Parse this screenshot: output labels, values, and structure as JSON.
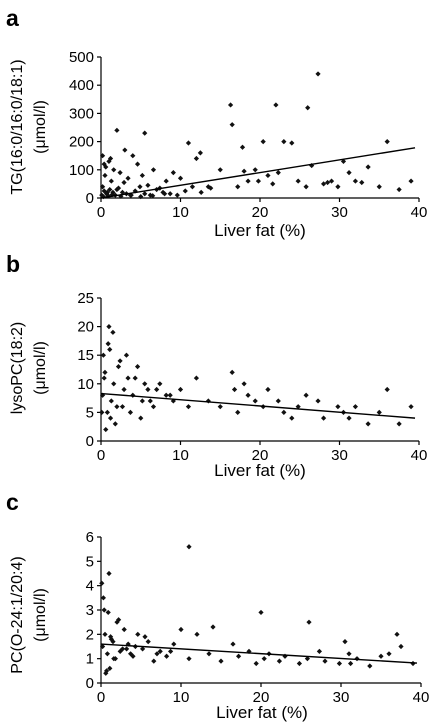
{
  "chart_data": [
    {
      "type": "scatter",
      "panel": "a",
      "xlabel": "Liver fat (%)",
      "ylabel_line1": "TG(16:0/16:0/18:1)",
      "ylabel_line2": "(μmol/l)",
      "xlim": [
        0,
        40
      ],
      "ylim": [
        0,
        500
      ],
      "xticks": [
        0,
        10,
        20,
        30,
        40
      ],
      "yticks": [
        0,
        100,
        200,
        300,
        400,
        500
      ],
      "trendline": {
        "x": [
          0,
          39.5
        ],
        "y": [
          0,
          178
        ]
      },
      "x": [
        0.2,
        0.5,
        0.8,
        1.0,
        1.3,
        1.6,
        2.0,
        2.4,
        2.9,
        3.4,
        4.0,
        4.6,
        5.2,
        5.9,
        6.6,
        7.4,
        8.2,
        9.1,
        10.0,
        11.0,
        12.0,
        13.5,
        15.0,
        16.3,
        16.5,
        17.2,
        17.8,
        18.5,
        19.4,
        19.8,
        20.4,
        21.0,
        21.6,
        22.3,
        23.0,
        24.0,
        24.8,
        25.8,
        26.5,
        27.3,
        28.0,
        29.0,
        29.8,
        30.5,
        31.2,
        32.0,
        32.8,
        33.6,
        35.0,
        36.0,
        37.5,
        39.0,
        0.1,
        0.4,
        0.7,
        1.1,
        1.5,
        1.8,
        2.2,
        2.7,
        3.2,
        3.7,
        4.3,
        4.9,
        5.5,
        6.2,
        7.0,
        7.8,
        8.7,
        9.6,
        10.6,
        11.5,
        12.6,
        13.8,
        0.3,
        0.9,
        1.4,
        2.5,
        3.8,
        5.0,
        6.5,
        8.0,
        2.0,
        3.0,
        5.5,
        12.5,
        18.0,
        22.0,
        26.0,
        28.5,
        0.6,
        1.2,
        0.2,
        0.4
      ],
      "y": [
        40,
        80,
        20,
        130,
        60,
        100,
        30,
        90,
        55,
        70,
        150,
        120,
        80,
        45,
        100,
        35,
        60,
        90,
        70,
        195,
        140,
        40,
        100,
        330,
        260,
        40,
        180,
        60,
        100,
        60,
        200,
        80,
        50,
        90,
        200,
        195,
        60,
        40,
        115,
        440,
        50,
        60,
        40,
        130,
        90,
        60,
        55,
        110,
        40,
        200,
        30,
        60,
        10,
        25,
        15,
        30,
        20,
        10,
        35,
        20,
        15,
        10,
        25,
        40,
        15,
        10,
        30,
        20,
        15,
        10,
        25,
        40,
        20,
        35,
        5,
        8,
        12,
        6,
        10,
        5,
        8,
        15,
        240,
        170,
        230,
        160,
        95,
        330,
        320,
        55,
        110,
        140,
        150,
        120
      ]
    },
    {
      "type": "scatter",
      "panel": "b",
      "xlabel": "Liver fat (%)",
      "ylabel_line1": "lysoPC(18:2)",
      "ylabel_line2": "(μmol/l)",
      "xlim": [
        0,
        40
      ],
      "ylim": [
        0,
        25
      ],
      "xticks": [
        0,
        10,
        20,
        30,
        40
      ],
      "yticks": [
        0,
        5,
        10,
        15,
        20,
        25
      ],
      "trendline": {
        "x": [
          0,
          39.5
        ],
        "y": [
          8.3,
          4.0
        ]
      },
      "x": [
        0.2,
        0.5,
        0.8,
        1.0,
        1.3,
        1.6,
        2.0,
        2.4,
        2.9,
        3.4,
        4.0,
        4.6,
        5.2,
        5.9,
        6.6,
        7.4,
        8.2,
        9.1,
        10.0,
        11.0,
        12.0,
        13.5,
        15.0,
        16.5,
        17.2,
        18.5,
        19.4,
        20.4,
        21.0,
        22.3,
        23.0,
        24.8,
        25.8,
        27.3,
        28.0,
        29.8,
        30.5,
        31.2,
        32.0,
        33.6,
        35.0,
        36.0,
        37.5,
        39.0,
        0.3,
        0.9,
        1.5,
        2.2,
        3.2,
        4.3,
        5.5,
        7.0,
        8.7,
        1.2,
        1.8,
        2.7,
        3.7,
        0.6,
        0.4,
        0.1,
        1.1,
        5.0,
        6.2,
        16.8,
        18.0,
        24.0
      ],
      "y": [
        8,
        12,
        5,
        20,
        7,
        10,
        6,
        14,
        9,
        11,
        8,
        13,
        7,
        9,
        6,
        10,
        8,
        7,
        9,
        6,
        11,
        7,
        6,
        12,
        5,
        8,
        7,
        6,
        9,
        7,
        5,
        6,
        8,
        7,
        4,
        6,
        5,
        4,
        6,
        3,
        5,
        9,
        3,
        6,
        15,
        17,
        19,
        13,
        15,
        11,
        10,
        9,
        8,
        4,
        3,
        6,
        5,
        2,
        11,
        5,
        16,
        4,
        7,
        9,
        10,
        4
      ]
    },
    {
      "type": "scatter",
      "panel": "c",
      "xlabel": "Liver fat (%)",
      "ylabel_line1": "PC(O-24:1/20:4)",
      "ylabel_line2": "(μmol/l)",
      "xlim": [
        0,
        40
      ],
      "ylim": [
        0,
        6
      ],
      "xticks": [
        0,
        10,
        20,
        30,
        40
      ],
      "yticks": [
        0,
        1,
        2,
        3,
        4,
        5,
        6
      ],
      "trendline": {
        "x": [
          0,
          39.5
        ],
        "y": [
          1.6,
          0.82
        ]
      },
      "x": [
        0.2,
        0.5,
        0.8,
        1.0,
        1.3,
        1.6,
        2.0,
        2.4,
        2.9,
        3.4,
        4.0,
        4.6,
        5.2,
        5.9,
        6.6,
        7.4,
        8.2,
        9.1,
        10.0,
        11.0,
        12.0,
        13.5,
        15.0,
        16.5,
        17.2,
        18.5,
        19.4,
        20.4,
        21.0,
        22.3,
        23.0,
        24.8,
        25.8,
        27.3,
        28.0,
        29.8,
        30.5,
        31.2,
        32.0,
        33.6,
        35.0,
        36.0,
        37.0,
        39.0,
        0.3,
        0.9,
        1.5,
        2.2,
        3.2,
        4.3,
        5.5,
        7.0,
        8.7,
        1.2,
        1.8,
        2.7,
        3.7,
        0.6,
        0.4,
        0.1,
        11.0,
        14.0,
        20.0,
        26.0,
        31.0,
        37.5,
        0.7,
        1.1
      ],
      "y": [
        1.5,
        2.0,
        1.2,
        4.5,
        1.8,
        1.0,
        2.5,
        1.3,
        2.2,
        1.6,
        1.1,
        2.0,
        1.4,
        1.7,
        0.9,
        1.3,
        1.1,
        1.6,
        2.2,
        1.0,
        2.0,
        1.2,
        0.9,
        1.6,
        1.1,
        1.3,
        0.8,
        1.0,
        1.2,
        0.9,
        1.1,
        0.8,
        1.0,
        1.3,
        0.9,
        0.8,
        1.7,
        0.8,
        1.0,
        0.7,
        1.1,
        1.2,
        2.0,
        0.8,
        3.5,
        2.9,
        1.7,
        2.6,
        1.4,
        1.5,
        1.9,
        1.2,
        1.3,
        1.9,
        1.0,
        1.4,
        1.2,
        0.4,
        3.0,
        4.1,
        5.6,
        2.3,
        2.9,
        2.5,
        1.2,
        1.5,
        0.5,
        0.6
      ]
    }
  ]
}
